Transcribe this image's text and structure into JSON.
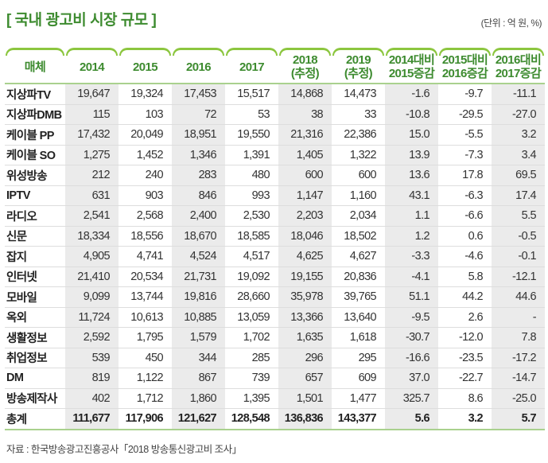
{
  "title": "[ 국내 광고비 시장 규모 ]",
  "unit": "(단위 : 억 원, %)",
  "headers": [
    [
      "매체"
    ],
    [
      "2014"
    ],
    [
      "2015"
    ],
    [
      "2016"
    ],
    [
      "2017"
    ],
    [
      "2018",
      "(추정)"
    ],
    [
      "2019",
      "(추정)"
    ],
    [
      "2014대비",
      "2015증감"
    ],
    [
      "2015대비",
      "2016증감"
    ],
    [
      "2016대비",
      "2017증감"
    ]
  ],
  "rows": [
    [
      "지상파TV",
      "19,647",
      "19,324",
      "17,453",
      "15,517",
      "14,868",
      "14,473",
      "-1.6",
      "-9.7",
      "-11.1"
    ],
    [
      "지상파DMB",
      "115",
      "103",
      "72",
      "53",
      "38",
      "33",
      "-10.8",
      "-29.5",
      "-27.0"
    ],
    [
      "케이블 PP",
      "17,432",
      "20,049",
      "18,951",
      "19,550",
      "21,316",
      "22,386",
      "15.0",
      "-5.5",
      "3.2"
    ],
    [
      "케이블 SO",
      "1,275",
      "1,452",
      "1,346",
      "1,391",
      "1,405",
      "1,322",
      "13.9",
      "-7.3",
      "3.4"
    ],
    [
      "위성방송",
      "212",
      "240",
      "283",
      "480",
      "600",
      "600",
      "13.6",
      "17.8",
      "69.5"
    ],
    [
      "IPTV",
      "631",
      "903",
      "846",
      "993",
      "1,147",
      "1,160",
      "43.1",
      "-6.3",
      "17.4"
    ],
    [
      "라디오",
      "2,541",
      "2,568",
      "2,400",
      "2,530",
      "2,203",
      "2,034",
      "1.1",
      "-6.6",
      "5.5"
    ],
    [
      "신문",
      "18,334",
      "18,556",
      "18,670",
      "18,585",
      "18,046",
      "18,502",
      "1.2",
      "0.6",
      "-0.5"
    ],
    [
      "잡지",
      "4,905",
      "4,741",
      "4,524",
      "4,517",
      "4,625",
      "4,627",
      "-3.3",
      "-4.6",
      "-0.1"
    ],
    [
      "인터넷",
      "21,410",
      "20,534",
      "21,731",
      "19,092",
      "19,155",
      "20,836",
      "-4.1",
      "5.8",
      "-12.1"
    ],
    [
      "모바일",
      "9,099",
      "13,744",
      "19,816",
      "28,660",
      "35,978",
      "39,765",
      "51.1",
      "44.2",
      "44.6"
    ],
    [
      "옥외",
      "11,724",
      "10,613",
      "10,885",
      "13,059",
      "13,366",
      "13,640",
      "-9.5",
      "2.6",
      "-"
    ],
    [
      "생활정보",
      "2,592",
      "1,795",
      "1,579",
      "1,702",
      "1,635",
      "1,618",
      "-30.7",
      "-12.0",
      "7.8"
    ],
    [
      "취업정보",
      "539",
      "450",
      "344",
      "285",
      "296",
      "295",
      "-16.6",
      "-23.5",
      "-17.2"
    ],
    [
      "DM",
      "819",
      "1,122",
      "867",
      "739",
      "657",
      "609",
      "37.0",
      "-22.7",
      "-14.7"
    ],
    [
      "방송제작사",
      "402",
      "1,712",
      "1,860",
      "1,395",
      "1,501",
      "1,477",
      "325.7",
      "8.6",
      "-25.0"
    ]
  ],
  "total": [
    "총계",
    "111,677",
    "117,906",
    "121,627",
    "128,548",
    "136,836",
    "143,377",
    "5.6",
    "3.2",
    "5.7"
  ],
  "source": "자료 : 한국방송광고진흥공사「2018 방송통신광고비 조사」",
  "colors": {
    "accent": "#3d8b2f",
    "line": "#8cc63f",
    "shade": "#ebebeb"
  }
}
